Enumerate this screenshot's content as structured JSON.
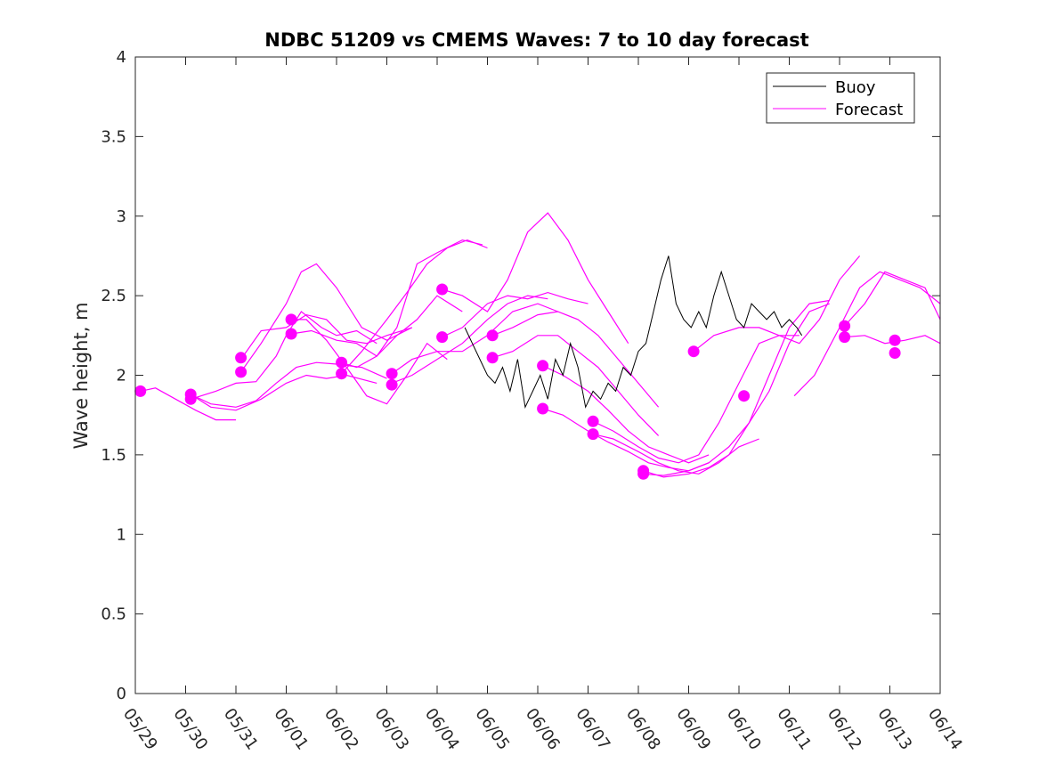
{
  "chart_data": {
    "type": "line",
    "title": "NDBC 51209 vs CMEMS Waves: 7 to 10 day forecast",
    "xlabel": "",
    "ylabel": "Wave height, m",
    "x_ticks": [
      "05/29",
      "05/30",
      "05/31",
      "06/01",
      "06/02",
      "06/03",
      "06/04",
      "06/05",
      "06/06",
      "06/07",
      "06/08",
      "06/09",
      "06/10",
      "06/11",
      "06/12",
      "06/13",
      "06/14"
    ],
    "xlim": [
      0,
      16
    ],
    "ylim": [
      0,
      4
    ],
    "y_ticks": [
      0,
      0.5,
      1,
      1.5,
      2,
      2.5,
      3,
      3.5,
      4
    ],
    "y_tick_labels": [
      "0",
      "0.5",
      "1",
      "1.5",
      "2",
      "2.5",
      "3",
      "3.5",
      "4"
    ],
    "grid": false,
    "legend_position": "top-right",
    "legend": [
      {
        "label": "Buoy",
        "color": "#000000"
      },
      {
        "label": "Forecast",
        "color": "#ff00ff"
      }
    ],
    "colors": {
      "buoy": "#000000",
      "forecast": "#ff00ff"
    },
    "series": [
      {
        "name": "Buoy",
        "x": [
          6.55,
          6.7,
          6.85,
          7.0,
          7.15,
          7.3,
          7.45,
          7.6,
          7.75,
          7.9,
          8.05,
          8.2,
          8.35,
          8.5,
          8.65,
          8.8,
          8.95,
          9.1,
          9.25,
          9.4,
          9.55,
          9.7,
          9.85,
          10.0,
          10.15,
          10.3,
          10.45,
          10.6,
          10.75,
          10.9,
          11.05,
          11.2,
          11.35,
          11.5,
          11.65,
          11.8,
          11.95,
          12.1,
          12.25,
          12.4,
          12.55,
          12.7,
          12.85,
          13.0,
          13.15,
          13.25
        ],
        "y": [
          2.3,
          2.2,
          2.1,
          2.0,
          1.95,
          2.05,
          1.9,
          2.1,
          1.8,
          1.9,
          2.0,
          1.85,
          2.1,
          2.0,
          2.2,
          2.05,
          1.8,
          1.9,
          1.85,
          1.95,
          1.9,
          2.05,
          2.0,
          2.15,
          2.2,
          2.4,
          2.6,
          2.75,
          2.45,
          2.35,
          2.3,
          2.4,
          2.3,
          2.5,
          2.65,
          2.5,
          2.35,
          2.3,
          2.45,
          2.4,
          2.35,
          2.4,
          2.3,
          2.35,
          2.3,
          2.25
        ]
      },
      {
        "name": "Forecast",
        "runs": [
          {
            "x": [
              0.1,
              0.4,
              0.8,
              1.2,
              1.6,
              2.0
            ],
            "y": [
              1.9,
              1.92,
              1.85,
              1.78,
              1.72,
              1.72
            ]
          },
          {
            "x": [
              1.1,
              1.5,
              2.0,
              2.4,
              2.8,
              3.2,
              3.6,
              4.0,
              4.5,
              5.0
            ],
            "y": [
              1.88,
              1.82,
              1.8,
              1.84,
              1.95,
              2.05,
              2.08,
              2.07,
              2.05,
              1.98
            ]
          },
          {
            "x": [
              1.1,
              1.6,
              2.0,
              2.4,
              2.8,
              3.0,
              3.3,
              3.7,
              4.0,
              4.4,
              4.8
            ],
            "y": [
              1.85,
              1.9,
              1.95,
              1.96,
              2.12,
              2.25,
              2.4,
              2.3,
              2.25,
              2.28,
              2.2
            ]
          },
          {
            "x": [
              1.1,
              1.5,
              2.0,
              2.5,
              3.0,
              3.4,
              3.8,
              4.2,
              4.8
            ],
            "y": [
              1.88,
              1.8,
              1.78,
              1.85,
              1.95,
              2.0,
              1.98,
              2.0,
              1.95
            ]
          },
          {
            "x": [
              2.1,
              2.5,
              3.0,
              3.3,
              3.6,
              4.0,
              4.5,
              5.0,
              5.5
            ],
            "y": [
              2.02,
              2.2,
              2.45,
              2.65,
              2.7,
              2.55,
              2.3,
              2.22,
              2.3
            ]
          },
          {
            "x": [
              2.1,
              2.5,
              3.0,
              3.4,
              3.8,
              4.2,
              4.6,
              5.0,
              5.5
            ],
            "y": [
              2.1,
              2.28,
              2.3,
              2.38,
              2.35,
              2.22,
              2.2,
              2.25,
              2.3
            ]
          },
          {
            "x": [
              3.1,
              3.4,
              3.8,
              4.2,
              4.6,
              5.0,
              5.4,
              5.8,
              6.2
            ],
            "y": [
              2.35,
              2.35,
              2.22,
              2.05,
              1.87,
              1.82,
              2.0,
              2.2,
              2.1
            ]
          },
          {
            "x": [
              3.1,
              3.5,
              4.0,
              4.4,
              4.8,
              5.2,
              5.6,
              6.0,
              6.5
            ],
            "y": [
              2.26,
              2.28,
              2.22,
              2.2,
              2.12,
              2.25,
              2.35,
              2.5,
              2.4
            ]
          },
          {
            "x": [
              4.1,
              4.4,
              4.8,
              5.2,
              5.6,
              6.0,
              6.5,
              6.9
            ],
            "y": [
              2.08,
              2.05,
              2.12,
              2.3,
              2.7,
              2.77,
              2.85,
              2.82
            ]
          },
          {
            "x": [
              4.1,
              4.5,
              5.0,
              5.4,
              5.8,
              6.2,
              6.6,
              7.0
            ],
            "y": [
              2.01,
              2.15,
              2.35,
              2.52,
              2.7,
              2.8,
              2.85,
              2.8
            ]
          },
          {
            "x": [
              5.1,
              5.5,
              6.0,
              6.5,
              7.0,
              7.4,
              7.8,
              8.2
            ],
            "y": [
              1.95,
              2.0,
              2.1,
              2.2,
              2.35,
              2.45,
              2.5,
              2.48
            ]
          },
          {
            "x": [
              5.1,
              5.5,
              6.0,
              6.5,
              7.0,
              7.5,
              8.0,
              8.4
            ],
            "y": [
              2.01,
              2.1,
              2.15,
              2.15,
              2.25,
              2.4,
              2.45,
              2.4
            ]
          },
          {
            "x": [
              6.1,
              6.5,
              7.0,
              7.4,
              7.8,
              8.2,
              8.6,
              9.0
            ],
            "y": [
              2.24,
              2.3,
              2.45,
              2.5,
              2.48,
              2.52,
              2.48,
              2.45
            ]
          },
          {
            "x": [
              6.1,
              6.5,
              7.0,
              7.4,
              7.8,
              8.2,
              8.6,
              9.0,
              9.4,
              9.8
            ],
            "y": [
              2.54,
              2.5,
              2.4,
              2.6,
              2.9,
              3.02,
              2.85,
              2.6,
              2.4,
              2.2
            ]
          },
          {
            "x": [
              7.1,
              7.5,
              8.0,
              8.4,
              8.8,
              9.2,
              9.6,
              10.0,
              10.4
            ],
            "y": [
              2.25,
              2.3,
              2.38,
              2.4,
              2.35,
              2.25,
              2.1,
              1.95,
              1.8
            ]
          },
          {
            "x": [
              7.1,
              7.5,
              8.0,
              8.4,
              8.8,
              9.2,
              9.6,
              10.0,
              10.4
            ],
            "y": [
              2.11,
              2.15,
              2.25,
              2.25,
              2.15,
              2.05,
              1.9,
              1.75,
              1.62
            ]
          },
          {
            "x": [
              8.1,
              8.5,
              9.0,
              9.4,
              9.8,
              10.2,
              10.6,
              11.0,
              11.4
            ],
            "y": [
              2.06,
              2.0,
              1.9,
              1.78,
              1.65,
              1.55,
              1.5,
              1.45,
              1.5
            ]
          },
          {
            "x": [
              8.1,
              8.5,
              9.0,
              9.4,
              9.8,
              10.2,
              10.6,
              11.0,
              11.4
            ],
            "y": [
              1.79,
              1.75,
              1.65,
              1.58,
              1.52,
              1.45,
              1.42,
              1.4,
              1.45
            ]
          },
          {
            "x": [
              9.1,
              9.5,
              10.0,
              10.4,
              10.8,
              11.2,
              11.6,
              12.0,
              12.4,
              12.8,
              13.2
            ],
            "y": [
              1.71,
              1.65,
              1.55,
              1.48,
              1.45,
              1.5,
              1.7,
              1.95,
              2.2,
              2.25,
              2.25
            ]
          },
          {
            "x": [
              9.1,
              9.5,
              10.0,
              10.4,
              10.8,
              11.2,
              11.6,
              12.0,
              12.4
            ],
            "y": [
              1.63,
              1.6,
              1.52,
              1.45,
              1.4,
              1.38,
              1.45,
              1.55,
              1.6
            ]
          },
          {
            "x": [
              10.1,
              10.5,
              11.0,
              11.4,
              11.8,
              12.2,
              12.6,
              13.0,
              13.4,
              13.8
            ],
            "y": [
              1.4,
              1.36,
              1.38,
              1.42,
              1.5,
              1.7,
              2.0,
              2.3,
              2.45,
              2.47
            ]
          },
          {
            "x": [
              10.1,
              10.5,
              11.0,
              11.4,
              11.8,
              12.2,
              12.6,
              13.0,
              13.4,
              13.8
            ],
            "y": [
              1.38,
              1.37,
              1.4,
              1.45,
              1.55,
              1.7,
              1.9,
              2.2,
              2.4,
              2.45
            ]
          },
          {
            "x": [
              11.1,
              11.5,
              12.0,
              12.4,
              12.8,
              13.2,
              13.6,
              14.0,
              14.4
            ],
            "y": [
              2.15,
              2.25,
              2.3,
              2.3,
              2.25,
              2.2,
              2.35,
              2.6,
              2.75
            ]
          },
          {
            "x": [
              13.1,
              13.5,
              14.0,
              14.4,
              14.8,
              15.2,
              15.6,
              16.0
            ],
            "y": [
              1.87,
              2.0,
              2.3,
              2.55,
              2.65,
              2.6,
              2.55,
              2.45
            ]
          },
          {
            "x": [
              14.1,
              14.5,
              14.9,
              15.3,
              15.7,
              16.0
            ],
            "y": [
              2.31,
              2.45,
              2.65,
              2.6,
              2.55,
              2.35
            ]
          },
          {
            "x": [
              14.1,
              14.5,
              14.9,
              15.3,
              15.7,
              16.0
            ],
            "y": [
              2.24,
              2.25,
              2.2,
              2.22,
              2.25,
              2.2
            ]
          }
        ],
        "markers": {
          "x": [
            0.1,
            1.1,
            1.1,
            2.1,
            2.1,
            3.1,
            3.1,
            4.1,
            4.1,
            5.1,
            5.1,
            6.1,
            6.1,
            7.1,
            7.1,
            8.1,
            8.1,
            9.1,
            9.1,
            10.1,
            10.1,
            11.1,
            12.1,
            14.1,
            14.1,
            15.1,
            15.1
          ],
          "y": [
            1.9,
            1.88,
            1.85,
            2.11,
            2.02,
            2.35,
            2.26,
            2.08,
            2.01,
            2.01,
            1.94,
            2.24,
            2.54,
            2.25,
            2.11,
            2.06,
            1.79,
            1.71,
            1.63,
            1.4,
            1.38,
            2.15,
            1.87,
            2.31,
            2.24,
            2.22,
            2.14
          ]
        }
      }
    ]
  }
}
